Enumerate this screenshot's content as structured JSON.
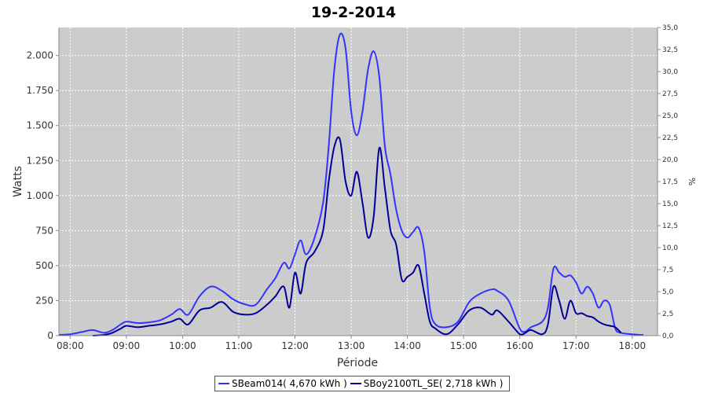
{
  "chart_data": {
    "type": "line",
    "title": "19-2-2014",
    "xlabel": "Période",
    "ylabel": "Watts",
    "y2label": "%",
    "xlim": [
      7.8,
      18.45
    ],
    "ylim": [
      0,
      2200
    ],
    "y2lim": [
      0,
      35
    ],
    "x_ticks": [
      "08:00",
      "09:00",
      "10:00",
      "11:00",
      "12:00",
      "13:00",
      "14:00",
      "15:00",
      "16:00",
      "17:00",
      "18:00"
    ],
    "y_ticks": [
      {
        "value": 0,
        "label": "0"
      },
      {
        "value": 250,
        "label": "250"
      },
      {
        "value": 500,
        "label": "500"
      },
      {
        "value": 750,
        "label": "750"
      },
      {
        "value": 1000,
        "label": "1.000"
      },
      {
        "value": 1250,
        "label": "1.250"
      },
      {
        "value": 1500,
        "label": "1.500"
      },
      {
        "value": 1750,
        "label": "1.750"
      },
      {
        "value": 2000,
        "label": "2.000"
      }
    ],
    "y2_ticks": [
      "0,0",
      "2,5",
      "5,0",
      "7,5",
      "10,0",
      "12,5",
      "15,0",
      "17,5",
      "20,0",
      "22,5",
      "25,0",
      "27,5",
      "30,0",
      "32,5",
      "35,0"
    ],
    "grid": true,
    "legend_position": "bottom",
    "series": [
      {
        "name": "SBeam014( 4,670 kWh )",
        "color": "#3333ff",
        "x": [
          7.8,
          8.0,
          8.2,
          8.4,
          8.6,
          8.75,
          8.9,
          9.0,
          9.2,
          9.4,
          9.6,
          9.8,
          9.95,
          10.1,
          10.3,
          10.5,
          10.7,
          10.9,
          11.1,
          11.3,
          11.5,
          11.65,
          11.8,
          11.9,
          12.0,
          12.1,
          12.2,
          12.35,
          12.5,
          12.6,
          12.7,
          12.8,
          12.9,
          13.0,
          13.1,
          13.2,
          13.3,
          13.4,
          13.5,
          13.6,
          13.7,
          13.8,
          13.9,
          14.0,
          14.1,
          14.2,
          14.3,
          14.4,
          14.5,
          14.7,
          14.9,
          15.1,
          15.3,
          15.5,
          15.6,
          15.8,
          16.0,
          16.1,
          16.2,
          16.4,
          16.5,
          16.6,
          16.7,
          16.8,
          16.9,
          17.0,
          17.1,
          17.2,
          17.3,
          17.4,
          17.5,
          17.6,
          17.7,
          17.8,
          18.0,
          18.2
        ],
        "y": [
          5,
          10,
          25,
          40,
          20,
          40,
          80,
          100,
          90,
          95,
          110,
          150,
          190,
          150,
          280,
          350,
          320,
          260,
          225,
          220,
          330,
          410,
          520,
          480,
          580,
          680,
          580,
          700,
          950,
          1350,
          1900,
          2150,
          2050,
          1600,
          1430,
          1600,
          1900,
          2030,
          1850,
          1350,
          1150,
          900,
          750,
          700,
          740,
          770,
          600,
          200,
          80,
          60,
          100,
          240,
          300,
          330,
          320,
          250,
          50,
          30,
          60,
          100,
          200,
          480,
          450,
          420,
          430,
          380,
          300,
          350,
          300,
          200,
          250,
          220,
          50,
          20,
          10,
          5
        ]
      },
      {
        "name": "SBoy2100TL_SE( 2,718 kWh )",
        "color": "#000099",
        "x": [
          8.4,
          8.6,
          8.75,
          8.9,
          9.0,
          9.2,
          9.4,
          9.6,
          9.8,
          9.95,
          10.1,
          10.3,
          10.5,
          10.7,
          10.9,
          11.1,
          11.3,
          11.5,
          11.65,
          11.8,
          11.9,
          12.0,
          12.1,
          12.2,
          12.35,
          12.5,
          12.6,
          12.7,
          12.8,
          12.9,
          13.0,
          13.1,
          13.2,
          13.3,
          13.4,
          13.5,
          13.6,
          13.7,
          13.8,
          13.9,
          14.0,
          14.1,
          14.2,
          14.3,
          14.4,
          14.5,
          14.7,
          14.9,
          15.1,
          15.3,
          15.5,
          15.6,
          15.8,
          16.0,
          16.1,
          16.2,
          16.4,
          16.5,
          16.6,
          16.7,
          16.8,
          16.9,
          17.0,
          17.1,
          17.2,
          17.3,
          17.4,
          17.5,
          17.6,
          17.7,
          17.8
        ],
        "y": [
          0,
          5,
          20,
          50,
          70,
          60,
          70,
          80,
          100,
          120,
          80,
          180,
          200,
          240,
          170,
          150,
          160,
          220,
          280,
          350,
          200,
          450,
          300,
          520,
          600,
          750,
          1100,
          1350,
          1400,
          1100,
          1000,
          1170,
          950,
          700,
          850,
          1340,
          1050,
          750,
          650,
          400,
          420,
          450,
          500,
          300,
          100,
          50,
          10,
          80,
          180,
          200,
          150,
          180,
          100,
          10,
          20,
          40,
          10,
          80,
          350,
          250,
          120,
          250,
          160,
          160,
          140,
          130,
          100,
          80,
          70,
          60,
          20
        ]
      }
    ]
  }
}
